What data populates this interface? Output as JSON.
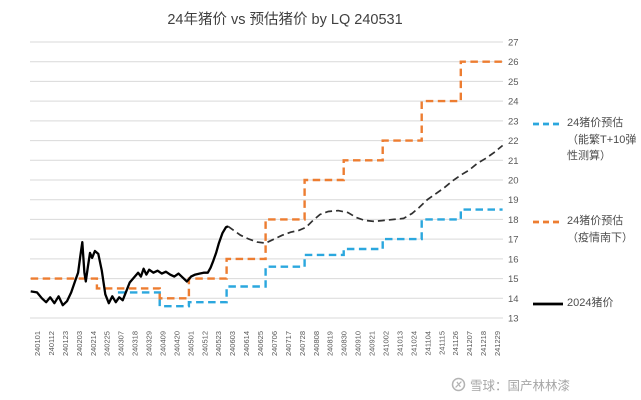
{
  "chart_data": {
    "type": "line",
    "title": "24年猪价 vs 预估猪价 by LQ 240531",
    "xlabel": "",
    "ylabel": "",
    "x_axis": {
      "tick_labels": [
        "240101",
        "240112",
        "240123",
        "240203",
        "240214",
        "240225",
        "240307",
        "240318",
        "240329",
        "240409",
        "240420",
        "240501",
        "240512",
        "240523",
        "240603",
        "240614",
        "240625",
        "240706",
        "240717",
        "240728",
        "240808",
        "240819",
        "240830",
        "240910",
        "240921",
        "241002",
        "241013",
        "241024",
        "241104",
        "241115",
        "241126",
        "241207",
        "241218",
        "241229"
      ],
      "rotation": -90
    },
    "y_axis": {
      "min": 13,
      "max": 27,
      "side": "right",
      "ticks": [
        13,
        14,
        15,
        16,
        17,
        18,
        19,
        20,
        21,
        22,
        23,
        24,
        25,
        26,
        27
      ]
    },
    "grid": "horizontal",
    "legend_position": "right",
    "x_unit": "tick_index",
    "series": [
      {
        "id": "forecast_sow_elasticity",
        "name": "24猪价预估（能繁T+10弹性测算）",
        "color": "#2BA7DE",
        "line_style": "dashed",
        "shape": "step",
        "segments": [
          [
            5.8,
            8.8,
            14.3
          ],
          [
            8.8,
            10.9,
            13.6
          ],
          [
            10.9,
            13.6,
            13.8
          ],
          [
            13.6,
            16.4,
            14.6
          ],
          [
            16.4,
            19.2,
            15.6
          ],
          [
            19.2,
            22.0,
            16.2
          ],
          [
            22.0,
            24.8,
            16.5
          ],
          [
            24.8,
            27.6,
            17.0
          ],
          [
            27.6,
            30.4,
            18.0
          ],
          [
            30.4,
            33.4,
            18.5
          ]
        ]
      },
      {
        "id": "forecast_epidemic_south",
        "name": "24猪价预估（疫情南下）",
        "color": "#ED7D31",
        "line_style": "dashed",
        "shape": "step",
        "segments": [
          [
            -0.45,
            4.3,
            15.0
          ],
          [
            4.3,
            8.8,
            14.5
          ],
          [
            8.8,
            10.9,
            14.0
          ],
          [
            10.9,
            13.6,
            15.0
          ],
          [
            13.6,
            16.4,
            16.0
          ],
          [
            16.4,
            19.2,
            18.0
          ],
          [
            19.2,
            22.0,
            20.0
          ],
          [
            22.0,
            24.8,
            21.0
          ],
          [
            24.8,
            27.6,
            22.0
          ],
          [
            27.6,
            30.4,
            24.0
          ],
          [
            30.4,
            33.4,
            26.0
          ]
        ]
      },
      {
        "id": "actual_2024",
        "name": "2024猪价",
        "color": "#000000",
        "line_style": "solid",
        "shape": "line",
        "points": [
          [
            -0.45,
            14.35
          ],
          [
            0,
            14.3
          ],
          [
            0.35,
            14.0
          ],
          [
            0.65,
            13.8
          ],
          [
            0.95,
            14.05
          ],
          [
            1.25,
            13.75
          ],
          [
            1.55,
            14.1
          ],
          [
            1.85,
            13.65
          ],
          [
            2.15,
            13.85
          ],
          [
            2.45,
            14.3
          ],
          [
            2.75,
            14.9
          ],
          [
            2.95,
            15.3
          ],
          [
            3.1,
            16.1
          ],
          [
            3.25,
            16.85
          ],
          [
            3.4,
            15.3
          ],
          [
            3.5,
            14.85
          ],
          [
            3.65,
            15.6
          ],
          [
            3.8,
            16.3
          ],
          [
            3.95,
            16.05
          ],
          [
            4.15,
            16.4
          ],
          [
            4.4,
            16.25
          ],
          [
            4.65,
            15.4
          ],
          [
            4.9,
            14.2
          ],
          [
            5.15,
            13.75
          ],
          [
            5.4,
            14.1
          ],
          [
            5.65,
            13.8
          ],
          [
            5.9,
            14.05
          ],
          [
            6.15,
            13.9
          ],
          [
            6.4,
            14.35
          ],
          [
            6.65,
            14.8
          ],
          [
            6.95,
            15.05
          ],
          [
            7.25,
            15.3
          ],
          [
            7.45,
            15.1
          ],
          [
            7.65,
            15.5
          ],
          [
            7.85,
            15.2
          ],
          [
            8.05,
            15.45
          ],
          [
            8.35,
            15.3
          ],
          [
            8.65,
            15.4
          ],
          [
            8.95,
            15.25
          ],
          [
            9.25,
            15.35
          ],
          [
            9.55,
            15.2
          ],
          [
            9.85,
            15.1
          ],
          [
            10.15,
            15.25
          ],
          [
            10.45,
            15.05
          ],
          [
            10.75,
            14.85
          ],
          [
            11.05,
            15.1
          ],
          [
            11.35,
            15.2
          ],
          [
            11.65,
            15.25
          ],
          [
            11.95,
            15.3
          ],
          [
            12.25,
            15.3
          ],
          [
            12.45,
            15.55
          ],
          [
            12.65,
            15.9
          ],
          [
            12.85,
            16.3
          ],
          [
            13.05,
            16.8
          ],
          [
            13.3,
            17.3
          ],
          [
            13.55,
            17.6
          ],
          [
            13.7,
            17.65
          ]
        ]
      },
      {
        "id": "actual_2024_dashed_extension",
        "name": "2024猪价（虚线段）",
        "color": "#303030",
        "line_style": "dashed",
        "shape": "line",
        "points": [
          [
            13.7,
            17.65
          ],
          [
            14.1,
            17.45
          ],
          [
            14.6,
            17.2
          ],
          [
            15.2,
            17.0
          ],
          [
            15.8,
            16.85
          ],
          [
            16.4,
            16.8
          ],
          [
            17.0,
            17.0
          ],
          [
            17.6,
            17.2
          ],
          [
            18.2,
            17.35
          ],
          [
            18.8,
            17.45
          ],
          [
            19.3,
            17.6
          ],
          [
            19.8,
            17.95
          ],
          [
            20.3,
            18.25
          ],
          [
            20.9,
            18.4
          ],
          [
            21.6,
            18.45
          ],
          [
            22.3,
            18.35
          ],
          [
            22.9,
            18.1
          ],
          [
            23.5,
            17.95
          ],
          [
            24.2,
            17.9
          ],
          [
            24.9,
            17.95
          ],
          [
            25.6,
            18.0
          ],
          [
            26.3,
            18.05
          ],
          [
            26.9,
            18.3
          ],
          [
            27.4,
            18.6
          ],
          [
            28.0,
            19.0
          ],
          [
            28.6,
            19.3
          ],
          [
            29.2,
            19.6
          ],
          [
            29.8,
            19.95
          ],
          [
            30.4,
            20.25
          ],
          [
            31.0,
            20.5
          ],
          [
            31.6,
            20.85
          ],
          [
            32.2,
            21.1
          ],
          [
            32.8,
            21.4
          ],
          [
            33.4,
            21.75
          ]
        ]
      }
    ],
    "legend": [
      {
        "lines": [
          "24猪价预估",
          "（能繁T+10弹",
          "性测算）"
        ],
        "color": "#2BA7DE",
        "dashed": true
      },
      {
        "lines": [
          "24猪价预估",
          "（疫情南下）"
        ],
        "color": "#ED7D31",
        "dashed": true
      },
      {
        "lines": [
          "2024猪价"
        ],
        "color": "#000000",
        "dashed": false
      }
    ],
    "watermark": "雪球：国产林林漆",
    "colors": {
      "grid": "#d9d9d9",
      "axis_text": "#595959",
      "title_text": "#404040",
      "watermark": "#a6a6a6"
    }
  }
}
